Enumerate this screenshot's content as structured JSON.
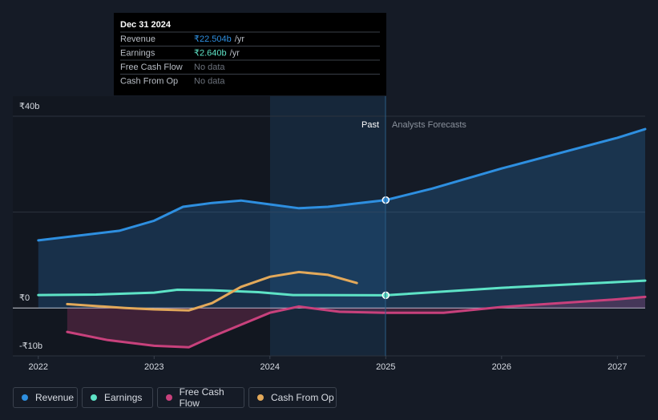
{
  "chart_data": {
    "type": "line",
    "xlim": [
      2021.78,
      2027.24
    ],
    "xticks": [
      2022,
      2023,
      2024,
      2025,
      2026,
      2027
    ],
    "ylim": [
      -10,
      40
    ],
    "yticks": [
      {
        "value": -10,
        "label": "-₹10b"
      },
      {
        "value": 0,
        "label": "₹0"
      },
      {
        "value": 20,
        "label": null
      },
      {
        "value": 40,
        "label": "₹40b"
      }
    ],
    "grid": true,
    "past_label": "Past",
    "forecast_label": "Analysts Forecasts",
    "tooltip": {
      "date": "Dec 31 2024",
      "unit": "/yr",
      "rows": [
        {
          "name": "Revenue",
          "value": "₹22.504b"
        },
        {
          "name": "Earnings",
          "value": "₹2.640b"
        },
        {
          "name": "Free Cash Flow",
          "value": "No data"
        },
        {
          "name": "Cash From Op",
          "value": "No data"
        }
      ]
    },
    "series": [
      {
        "name": "Revenue",
        "color": "#2e8fe0",
        "x": [
          2022.0,
          2022.7,
          2023.0,
          2023.25,
          2023.5,
          2023.75,
          2024.0,
          2024.25,
          2024.5,
          2024.75,
          2025.0,
          2025.4,
          2026.0,
          2027.0,
          2027.24
        ],
        "values": [
          14.1,
          16.1,
          18.2,
          21.1,
          21.9,
          22.4,
          21.6,
          20.8,
          21.1,
          21.8,
          22.504,
          24.9,
          29.1,
          35.5,
          37.3
        ]
      },
      {
        "name": "Earnings",
        "color": "#5ee3c6",
        "x": [
          2022.0,
          2022.5,
          2023.0,
          2023.2,
          2023.5,
          2023.9,
          2024.2,
          2025.0,
          2026.0,
          2027.0,
          2027.24
        ],
        "values": [
          2.7,
          2.8,
          3.2,
          3.8,
          3.7,
          3.3,
          2.7,
          2.64,
          4.2,
          5.4,
          5.7
        ]
      },
      {
        "name": "Free Cash Flow",
        "color": "#c8417c",
        "x": [
          2022.25,
          2022.6,
          2023.0,
          2023.3,
          2023.5,
          2023.75,
          2024.0,
          2024.25,
          2024.6,
          2025.0,
          2025.5,
          2026.0,
          2027.0,
          2027.24
        ],
        "values": [
          -5.0,
          -6.7,
          -7.9,
          -8.2,
          -6.0,
          -3.5,
          -1.0,
          0.3,
          -0.8,
          -1.0,
          -1.0,
          0.2,
          1.8,
          2.3
        ]
      },
      {
        "name": "Cash From Op",
        "color": "#e3a95a",
        "x": [
          2022.25,
          2022.75,
          2023.0,
          2023.3,
          2023.5,
          2023.75,
          2024.0,
          2024.25,
          2024.5,
          2024.75
        ],
        "values": [
          0.8,
          0.0,
          -0.3,
          -0.5,
          1.0,
          4.4,
          6.5,
          7.5,
          6.9,
          5.2
        ]
      }
    ]
  }
}
